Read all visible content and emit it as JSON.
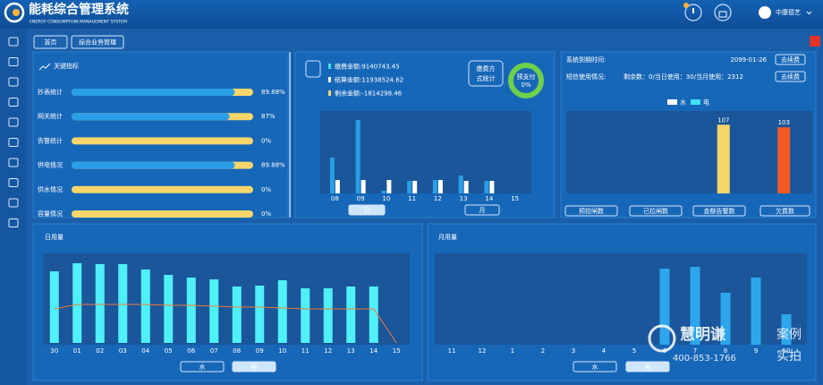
{
  "header": {
    "title": "能耗综合管理系统",
    "subtitle": "ENERGY CONSUMPTION MANAGEMENT SYSTEM",
    "user": "中康德艺"
  },
  "tabs": [
    "首页",
    "综合业务管理"
  ],
  "chart_data": [
    {
      "type": "progress",
      "title": "关键指标",
      "categories": [
        "抄表统计",
        "网关统计",
        "告警统计",
        "供电情况",
        "供水情况",
        "容量情况"
      ],
      "values": [
        89.88,
        87,
        0,
        89.88,
        0,
        0
      ],
      "value_labels": [
        "89.88%",
        "87%",
        "0%",
        "89.88%",
        "0%",
        "0%"
      ],
      "xlim": [
        0,
        100
      ],
      "color": "#2a9ee6",
      "track_color": "#f6d66b"
    },
    {
      "type": "bar",
      "stats": [
        {
          "text": "缴费金额:9140743.45",
          "color": "#3fe3f3"
        },
        {
          "text": "结算金额:11938524.62",
          "color": "#ffffff"
        },
        {
          "text": "剩余金额:-1814298.46",
          "color": "#f6d66b"
        }
      ],
      "donut": {
        "title": [
          "缴费方",
          "式统计"
        ],
        "label": "预支付",
        "value": 0,
        "value_label": "0%",
        "color": "#e8433a",
        "track_color": "#6fd04b"
      },
      "categories": [
        "08",
        "09",
        "10",
        "11",
        "12",
        "13",
        "14",
        "15"
      ],
      "series": [
        {
          "color": "#2a9ee6",
          "values": [
            40,
            82,
            3,
            14,
            15,
            20,
            14,
            null
          ]
        },
        {
          "color": "#ffffff",
          "values": [
            15,
            15,
            15,
            14,
            15,
            14,
            14,
            null
          ]
        }
      ],
      "ylim": [
        0,
        90
      ],
      "buttons": [
        "日",
        "月"
      ],
      "active_button": 0
    },
    {
      "type": "bar",
      "expiry_label": "系统到期时间:",
      "expiry_date": "2099-01-26",
      "sms_label": "短信使用情况:",
      "sms_text": "剩余数：0/当日使用：30/当月使用：2312",
      "renew_buttons": [
        "去续费",
        "去续费"
      ],
      "legend": [
        {
          "name": "水",
          "color": "#ffffff"
        },
        {
          "name": "电",
          "color": "#3fe3f3"
        }
      ],
      "categories": [
        null,
        null,
        null,
        null
      ],
      "values": [
        null,
        null,
        107,
        103
      ],
      "bar_colors": [
        null,
        null,
        "#f6d66b",
        "#f05a22"
      ],
      "value_colors": [
        null,
        null,
        "#ffffff",
        "#f05a22"
      ],
      "ylim": [
        0,
        120
      ],
      "show_values": true,
      "buttons": [
        "预控闸数",
        "已拉闸数",
        "金额告警数",
        "欠费数"
      ]
    },
    {
      "type": "bar_line",
      "title": "日用量",
      "categories": [
        "30",
        "01",
        "02",
        "03",
        "04",
        "05",
        "06",
        "07",
        "08",
        "09",
        "10",
        "11",
        "12",
        "13",
        "14",
        "15"
      ],
      "series": [
        {
          "type": "bar",
          "color": "#4ff0f8",
          "values": [
            80,
            89,
            88,
            88,
            82,
            76,
            73,
            71,
            63,
            64,
            70,
            61,
            61,
            63,
            63,
            null
          ]
        },
        {
          "type": "line",
          "color": "#f07a3a",
          "values": [
            38,
            43,
            43,
            43,
            43,
            42,
            42,
            41,
            40,
            40,
            39,
            38,
            38,
            38,
            38,
            0
          ]
        }
      ],
      "ylim": [
        0,
        100
      ],
      "buttons": [
        "水",
        "电"
      ],
      "active_button": 1
    },
    {
      "type": "bar",
      "title": "月用量",
      "categories": [
        "11",
        "12",
        "1",
        "2",
        "3",
        "4",
        "5",
        "6",
        "7",
        "8",
        "9",
        "10"
      ],
      "values": [
        null,
        null,
        null,
        null,
        null,
        null,
        null,
        85,
        87,
        58,
        75,
        34
      ],
      "color": "#2fa6ec",
      "ylim": [
        0,
        100
      ],
      "buttons": [
        "水",
        "电"
      ],
      "active_button": 1
    }
  ],
  "watermark": {
    "brand": "慧明谦",
    "tag1": "案例",
    "tag2": "实拍",
    "phone": "400-853-1766"
  }
}
